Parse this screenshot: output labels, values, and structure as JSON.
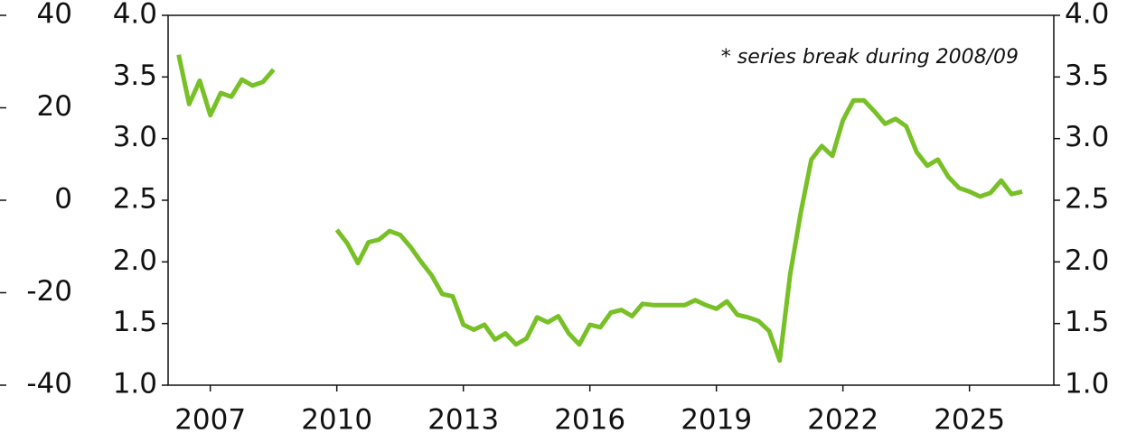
{
  "chart_data": {
    "type": "line",
    "annotation": "* series break during 2008/09",
    "x": [
      2006.25,
      2006.5,
      2006.75,
      2007.0,
      2007.25,
      2007.5,
      2007.75,
      2008.0,
      2008.25,
      2008.5,
      2009.0,
      2010.0,
      2010.25,
      2010.5,
      2010.75,
      2011.0,
      2011.25,
      2011.5,
      2011.75,
      2012.0,
      2012.25,
      2012.5,
      2012.75,
      2013.0,
      2013.25,
      2013.5,
      2013.75,
      2014.0,
      2014.25,
      2014.5,
      2014.75,
      2015.0,
      2015.25,
      2015.5,
      2015.75,
      2016.0,
      2016.25,
      2016.5,
      2016.75,
      2017.0,
      2017.25,
      2017.5,
      2017.75,
      2018.0,
      2018.25,
      2018.5,
      2018.75,
      2019.0,
      2019.25,
      2019.5,
      2019.75,
      2020.0,
      2020.25,
      2020.5,
      2020.75,
      2021.0,
      2021.25,
      2021.5,
      2021.75,
      2022.0,
      2022.25,
      2022.5,
      2022.75,
      2023.0,
      2023.25,
      2023.5,
      2023.75,
      2024.0,
      2024.25,
      2024.5,
      2024.75,
      2025.0,
      2025.25,
      2025.5,
      2025.75,
      2026.0,
      2026.25
    ],
    "series": [
      {
        "color": "#77c026",
        "values": [
          3.68,
          3.28,
          3.47,
          3.19,
          3.37,
          3.34,
          3.48,
          3.43,
          3.46,
          3.56,
          null,
          2.26,
          2.15,
          1.99,
          2.16,
          2.18,
          2.25,
          2.22,
          2.12,
          2.0,
          1.89,
          1.74,
          1.72,
          1.49,
          1.45,
          1.49,
          1.37,
          1.42,
          1.33,
          1.38,
          1.55,
          1.51,
          1.56,
          1.42,
          1.33,
          1.49,
          1.47,
          1.59,
          1.61,
          1.56,
          1.66,
          1.65,
          1.65,
          1.65,
          1.65,
          1.69,
          1.65,
          1.62,
          1.68,
          1.57,
          1.55,
          1.52,
          1.44,
          1.2,
          1.9,
          2.4,
          2.83,
          2.94,
          2.86,
          3.15,
          3.31,
          3.31,
          3.22,
          3.12,
          3.16,
          3.1,
          2.89,
          2.78,
          2.83,
          2.69,
          2.6,
          2.57,
          2.53,
          2.56,
          2.66,
          2.55,
          2.57
        ]
      }
    ],
    "xlim": [
      2006,
      2027
    ],
    "xticks": [
      2007,
      2010,
      2013,
      2016,
      2019,
      2022,
      2025
    ],
    "ylim": [
      1,
      4
    ],
    "yticks": [
      {
        "value": 1,
        "label": "1.0"
      },
      1.5,
      {
        "value": 2,
        "label": "2.0"
      },
      2.5,
      {
        "value": 3,
        "label": "3.0"
      },
      3.5,
      {
        "value": 4,
        "label": "4.0"
      }
    ],
    "y2lim": [
      1,
      4
    ],
    "y2ticks": [
      {
        "value": 1,
        "label": "1.0"
      },
      1.5,
      {
        "value": 2,
        "label": "2.0"
      },
      2.5,
      {
        "value": 3,
        "label": "3.0"
      },
      3.5,
      {
        "value": 4,
        "label": "4.0"
      }
    ],
    "outer_ylim": [
      -40,
      40
    ],
    "outer_yticks": [
      -40,
      -20,
      0,
      20,
      40
    ]
  }
}
